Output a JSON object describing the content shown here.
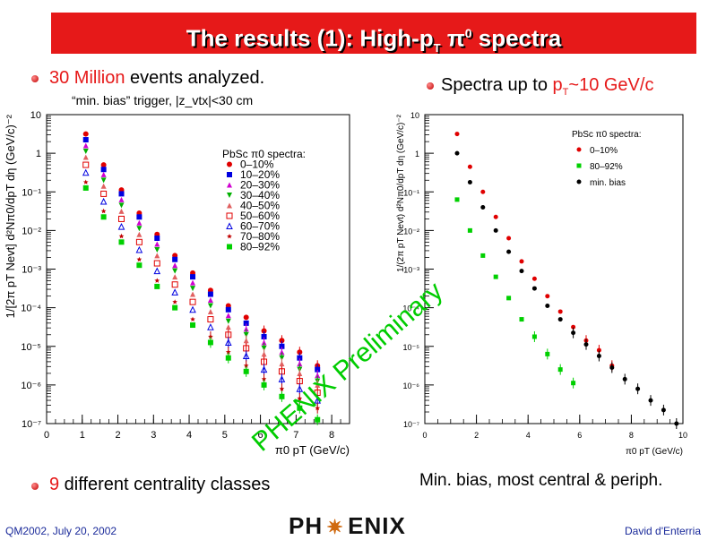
{
  "title": {
    "main": "The results (1): High-p",
    "sub": "T",
    "pi": "π",
    "sup": "0",
    "rest": " spectra"
  },
  "bullets": {
    "events_highlight": "30 Million",
    "events_rest": " events analyzed.",
    "trigger": "“min. bias” trigger, |z_vtx|<30 cm",
    "spectra_pre": "Spectra up to ",
    "spectra_p": "p",
    "spectra_T": "T",
    "spectra_val": "~10 GeV/c",
    "centrality_num": "9",
    "centrality_rest": " different centrality classes",
    "minbias_caption": "Min. bias, most central & periph."
  },
  "watermark": "PHENIX Preliminary",
  "footer": {
    "left": "QM2002, July 20, 2002",
    "right": "David d'Enterria",
    "logo_left": "PH",
    "logo_star": "✷",
    "logo_right": "ENIX"
  },
  "colors": {
    "title_bg": "#e61919",
    "accent": "#e61919",
    "footer_text": "#1a2a9a",
    "watermark": "#00cc00"
  },
  "chart_data": [
    {
      "type": "scatter",
      "title": "",
      "xlabel": "π0 pT (GeV/c)",
      "ylabel": "1/[2π pT Nevt] d²Nπ0/dpT dη (GeV/c)⁻²",
      "xlim": [
        0,
        8.5
      ],
      "ylog": true,
      "ylim_exp": [
        -7,
        1
      ],
      "x_ticks": [
        "0",
        "1",
        "2",
        "3",
        "4",
        "5",
        "6",
        "7",
        "8"
      ],
      "y_ticks": [
        "10",
        "1",
        "10⁻¹",
        "10⁻²",
        "10⁻³",
        "10⁻⁴",
        "10⁻⁵",
        "10⁻⁶",
        "10⁻⁷"
      ],
      "legend_title": "PbSc π0 spectra:",
      "legend_position": "upper-right",
      "x": [
        1.1,
        1.6,
        2.1,
        2.6,
        3.1,
        3.6,
        4.1,
        4.6,
        5.1,
        5.6,
        6.1,
        6.6,
        7.1,
        7.6
      ],
      "series": [
        {
          "name": "0–10%",
          "color": "#e00000",
          "marker": "circle",
          "log10_values": [
            0.5,
            -0.3,
            -0.95,
            -1.55,
            -2.1,
            -2.65,
            -3.1,
            -3.55,
            -3.95,
            -4.25,
            -4.6,
            -4.85,
            -5.15,
            -5.5
          ]
        },
        {
          "name": "10–20%",
          "color": "#0000e0",
          "marker": "square",
          "log10_values": [
            0.35,
            -0.42,
            -1.05,
            -1.65,
            -2.2,
            -2.75,
            -3.2,
            -3.65,
            -4.05,
            -4.4,
            -4.75,
            -5.0,
            -5.3,
            -5.6
          ]
        },
        {
          "name": "20–30%",
          "color": "#d000d0",
          "marker": "triangle-up",
          "log10_values": [
            0.2,
            -0.55,
            -1.2,
            -1.8,
            -2.35,
            -2.9,
            -3.35,
            -3.8,
            -4.2,
            -4.55,
            -4.9,
            -5.15,
            -5.45,
            -5.75
          ]
        },
        {
          "name": "30–40%",
          "color": "#00b000",
          "marker": "triangle-down",
          "log10_values": [
            0.05,
            -0.7,
            -1.35,
            -1.95,
            -2.5,
            -3.05,
            -3.5,
            -3.95,
            -4.35,
            -4.7,
            -5.05,
            -5.3,
            -5.6,
            -5.9
          ]
        },
        {
          "name": "40–50%",
          "color": "#e06060",
          "marker": "triangle-up",
          "log10_values": [
            -0.1,
            -0.85,
            -1.5,
            -2.1,
            -2.65,
            -3.2,
            -3.65,
            -4.1,
            -4.5,
            -4.85,
            -5.2,
            -5.45,
            -5.7,
            -6.0
          ]
        },
        {
          "name": "50–60%",
          "color": "#e00000",
          "marker": "open-square",
          "log10_values": [
            -0.3,
            -1.05,
            -1.7,
            -2.3,
            -2.85,
            -3.4,
            -3.85,
            -4.3,
            -4.7,
            -5.05,
            -5.4,
            -5.65,
            -5.9,
            -6.2
          ]
        },
        {
          "name": "60–70%",
          "color": "#0000e0",
          "marker": "open-triangle",
          "log10_values": [
            -0.5,
            -1.25,
            -1.9,
            -2.5,
            -3.05,
            -3.6,
            -4.05,
            -4.5,
            -4.9,
            -5.25,
            -5.6,
            -5.85,
            -6.1,
            -6.4
          ]
        },
        {
          "name": "70–80%",
          "color": "#c00000",
          "marker": "star",
          "log10_values": [
            -0.75,
            -1.5,
            -2.15,
            -2.75,
            -3.3,
            -3.85,
            -4.3,
            -4.75,
            -5.15,
            -5.5,
            -5.85,
            -6.1,
            -6.35,
            -6.6
          ]
        },
        {
          "name": "80–92%",
          "color": "#00d000",
          "marker": "square",
          "log10_values": [
            -0.9,
            -1.65,
            -2.3,
            -2.9,
            -3.45,
            -4.0,
            -4.45,
            -4.9,
            -5.3,
            -5.65,
            -6.0,
            -6.3,
            -6.6,
            -6.9
          ]
        }
      ]
    },
    {
      "type": "scatter",
      "title": "",
      "xlabel": "π0 pT (GeV/c)",
      "ylabel": "1/(2π pT Nevt) d²Nπ0/dpT dη (GeV/c)⁻²",
      "xlim": [
        0,
        10
      ],
      "ylog": true,
      "ylim_exp": [
        -7,
        1
      ],
      "x_ticks": [
        "0",
        "2",
        "4",
        "6",
        "8",
        "10"
      ],
      "y_ticks": [
        "10",
        "1",
        "10⁻¹",
        "10⁻²",
        "10⁻³",
        "10⁻⁴",
        "10⁻⁵",
        "10⁻⁶",
        "10⁻⁷"
      ],
      "legend_title": "PbSc π0 spectra:",
      "legend_position": "upper-right",
      "series": [
        {
          "name": "0–10%",
          "color": "#e00000",
          "marker": "circle",
          "x": [
            1.25,
            1.75,
            2.25,
            2.75,
            3.25,
            3.75,
            4.25,
            4.75,
            5.25,
            5.75,
            6.25,
            6.75,
            7.25
          ],
          "log10_values": [
            0.5,
            -0.35,
            -1.0,
            -1.65,
            -2.2,
            -2.8,
            -3.25,
            -3.7,
            -4.1,
            -4.5,
            -4.85,
            -5.1,
            -5.5
          ]
        },
        {
          "name": "80–92%",
          "color": "#00d000",
          "marker": "square",
          "x": [
            1.25,
            1.75,
            2.25,
            2.75,
            3.25,
            3.75,
            4.25,
            4.75,
            5.25,
            5.75
          ],
          "log10_values": [
            -1.2,
            -2.0,
            -2.65,
            -3.2,
            -3.75,
            -4.3,
            -4.75,
            -5.2,
            -5.6,
            -5.95
          ]
        },
        {
          "name": "min. bias",
          "color": "#000000",
          "marker": "circle",
          "x": [
            1.25,
            1.75,
            2.25,
            2.75,
            3.25,
            3.75,
            4.25,
            4.75,
            5.25,
            5.75,
            6.25,
            6.75,
            7.25,
            7.75,
            8.25,
            8.75,
            9.25,
            9.75
          ],
          "log10_values": [
            0.0,
            -0.75,
            -1.4,
            -2.0,
            -2.55,
            -3.05,
            -3.5,
            -3.95,
            -4.3,
            -4.65,
            -4.95,
            -5.25,
            -5.55,
            -5.85,
            -6.1,
            -6.4,
            -6.65,
            -7.0
          ]
        }
      ]
    }
  ]
}
